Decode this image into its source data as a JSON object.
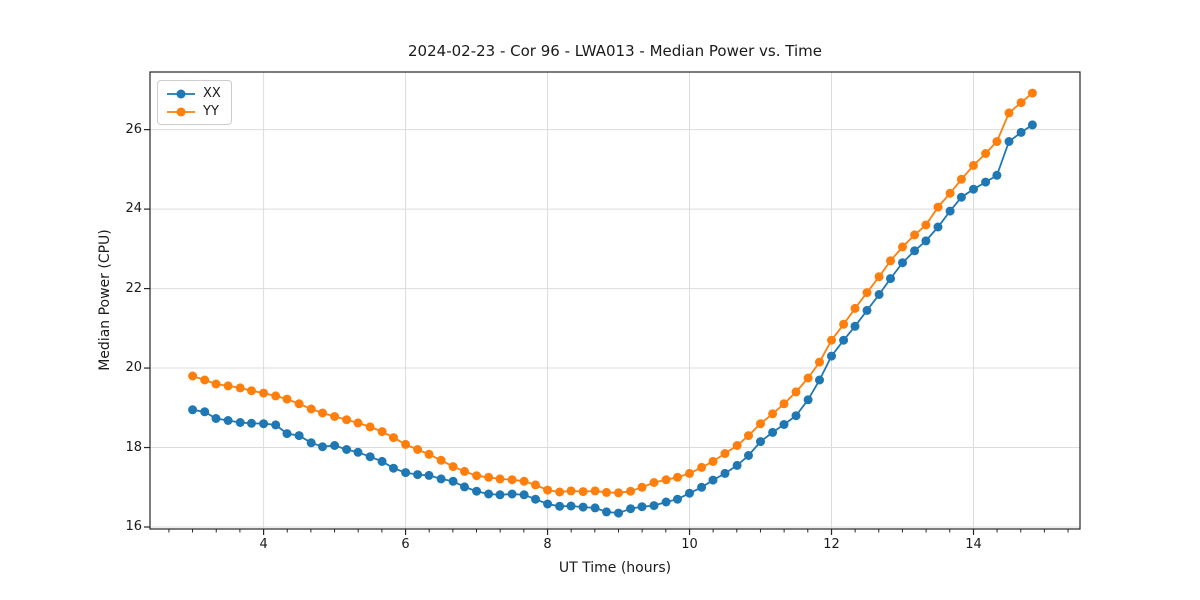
{
  "colors": {
    "series_xx": "#1f77b4",
    "series_yy": "#ff7f0e",
    "grid": "#dcdcdc",
    "spine": "#262626",
    "legend_border": "#cccccc"
  },
  "chart_data": {
    "type": "line",
    "title": "2024-02-23 - Cor 96 - LWA013 - Median Power vs. Time",
    "xlabel": "UT Time (hours)",
    "ylabel": "Median Power (CPU)",
    "xlim": [
      2.4,
      15.5
    ],
    "ylim": [
      15.95,
      27.45
    ],
    "xticks": [
      4,
      6,
      8,
      10,
      12,
      14
    ],
    "yticks": [
      16,
      18,
      20,
      22,
      24,
      26
    ],
    "x_minor_tick_step": 0.3333,
    "grid": true,
    "legend_position": "upper left",
    "x": [
      3,
      3.17,
      3.33,
      3.5,
      3.67,
      3.83,
      4,
      4.17,
      4.33,
      4.5,
      4.67,
      4.83,
      5,
      5.17,
      5.33,
      5.5,
      5.67,
      5.83,
      6,
      6.17,
      6.33,
      6.5,
      6.67,
      6.83,
      7,
      7.17,
      7.33,
      7.5,
      7.67,
      7.83,
      8,
      8.17,
      8.33,
      8.5,
      8.67,
      8.83,
      9,
      9.17,
      9.33,
      9.5,
      9.67,
      9.83,
      10,
      10.17,
      10.33,
      10.5,
      10.67,
      10.83,
      11,
      11.17,
      11.33,
      11.5,
      11.67,
      11.83,
      12,
      12.17,
      12.33,
      12.5,
      12.67,
      12.83,
      13,
      13.17,
      13.33,
      13.5,
      13.67,
      13.83,
      14,
      14.17,
      14.33,
      14.5,
      14.67,
      14.83
    ],
    "series": [
      {
        "name": "XX",
        "color": "#1f77b4",
        "marker": "circle",
        "values": [
          18.95,
          18.9,
          18.73,
          18.68,
          18.63,
          18.61,
          18.6,
          18.57,
          18.35,
          18.3,
          18.12,
          18.02,
          18.05,
          17.95,
          17.88,
          17.77,
          17.65,
          17.48,
          17.37,
          17.32,
          17.3,
          17.21,
          17.15,
          17.01,
          16.9,
          16.83,
          16.81,
          16.83,
          16.81,
          16.7,
          16.58,
          16.52,
          16.53,
          16.5,
          16.48,
          16.38,
          16.35,
          16.46,
          16.51,
          16.54,
          16.63,
          16.7,
          16.85,
          17,
          17.18,
          17.35,
          17.55,
          17.8,
          18.15,
          18.38,
          18.58,
          18.8,
          19.2,
          19.7,
          20.3,
          20.7,
          21.05,
          21.45,
          21.85,
          22.25,
          22.65,
          22.95,
          23.2,
          23.55,
          23.95,
          24.3,
          24.5,
          24.68,
          24.85,
          25.7,
          25.93,
          26.12
        ]
      },
      {
        "name": "YY",
        "color": "#ff7f0e",
        "marker": "circle",
        "values": [
          19.8,
          19.7,
          19.6,
          19.55,
          19.5,
          19.43,
          19.37,
          19.3,
          19.22,
          19.1,
          18.97,
          18.87,
          18.78,
          18.7,
          18.62,
          18.52,
          18.4,
          18.25,
          18.08,
          17.95,
          17.83,
          17.68,
          17.52,
          17.4,
          17.29,
          17.25,
          17.21,
          17.19,
          17.15,
          17.06,
          16.93,
          16.88,
          16.91,
          16.89,
          16.91,
          16.87,
          16.86,
          16.9,
          17,
          17.12,
          17.19,
          17.25,
          17.35,
          17.5,
          17.65,
          17.85,
          18.05,
          18.3,
          18.6,
          18.85,
          19.1,
          19.4,
          19.75,
          20.15,
          20.7,
          21.1,
          21.5,
          21.9,
          22.3,
          22.7,
          23.05,
          23.35,
          23.6,
          24.05,
          24.4,
          24.75,
          25.1,
          25.4,
          25.7,
          26.42,
          26.68,
          26.92
        ]
      }
    ]
  }
}
